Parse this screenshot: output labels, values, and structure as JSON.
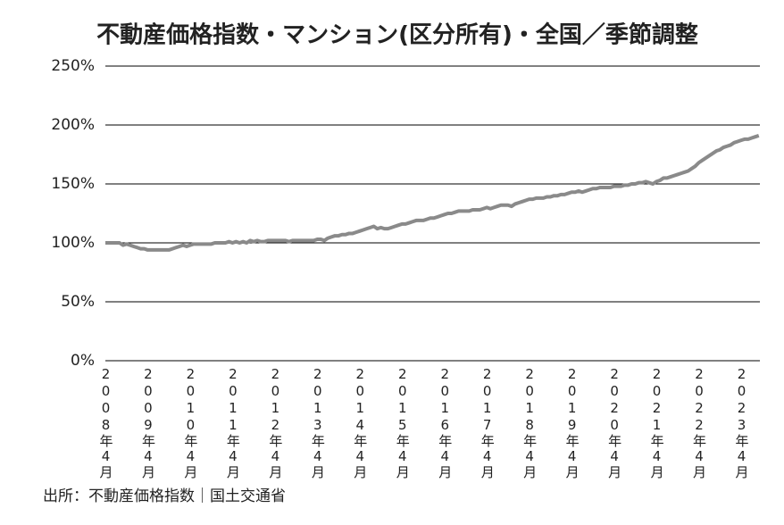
{
  "chart_data": {
    "type": "line",
    "title": "不動産価格指数・マンション(区分所有)・全国／季節調整",
    "source": "出所：不動産価格指数｜国土交通省",
    "categories": [
      "2008年4月",
      null,
      null,
      null,
      null,
      null,
      null,
      null,
      null,
      null,
      null,
      null,
      "2009年4月",
      null,
      null,
      null,
      null,
      null,
      null,
      null,
      null,
      null,
      null,
      null,
      "2010年4月",
      null,
      null,
      null,
      null,
      null,
      null,
      null,
      null,
      null,
      null,
      null,
      "2011年4月",
      null,
      null,
      null,
      null,
      null,
      null,
      null,
      null,
      null,
      null,
      null,
      "2012年4月",
      null,
      null,
      null,
      null,
      null,
      null,
      null,
      null,
      null,
      null,
      null,
      "2013年4月",
      null,
      null,
      null,
      null,
      null,
      null,
      null,
      null,
      null,
      null,
      null,
      "2014年4月",
      null,
      null,
      null,
      null,
      null,
      null,
      null,
      null,
      null,
      null,
      null,
      "2015年4月",
      null,
      null,
      null,
      null,
      null,
      null,
      null,
      null,
      null,
      null,
      null,
      "2016年4月",
      null,
      null,
      null,
      null,
      null,
      null,
      null,
      null,
      null,
      null,
      null,
      "2017年4月",
      null,
      null,
      null,
      null,
      null,
      null,
      null,
      null,
      null,
      null,
      null,
      "2018年4月",
      null,
      null,
      null,
      null,
      null,
      null,
      null,
      null,
      null,
      null,
      null,
      "2019年4月",
      null,
      null,
      null,
      null,
      null,
      null,
      null,
      null,
      null,
      null,
      null,
      "2020年4月",
      null,
      null,
      null,
      null,
      null,
      null,
      null,
      null,
      null,
      null,
      null,
      "2021年4月",
      null,
      null,
      null,
      null,
      null,
      null,
      null,
      null,
      null,
      null,
      null,
      "2022年4月",
      null,
      null,
      null,
      null,
      null,
      null,
      null,
      null,
      null,
      null,
      null,
      "2023年4月",
      null,
      null,
      null,
      null,
      null
    ],
    "values": [
      100,
      100,
      100,
      100,
      100,
      98,
      99,
      98,
      97,
      96,
      95,
      95,
      94,
      94,
      94,
      94,
      94,
      94,
      94,
      95,
      96,
      97,
      98,
      97,
      98,
      99,
      99,
      99,
      99,
      99,
      99,
      100,
      100,
      100,
      100,
      101,
      100,
      101,
      100,
      101,
      100,
      102,
      101,
      102,
      101,
      101,
      102,
      102,
      102,
      102,
      102,
      102,
      101,
      102,
      102,
      102,
      102,
      102,
      102,
      102,
      103,
      103,
      102,
      104,
      105,
      106,
      106,
      107,
      107,
      108,
      108,
      109,
      110,
      111,
      112,
      113,
      114,
      112,
      113,
      112,
      112,
      113,
      114,
      115,
      116,
      116,
      117,
      118,
      119,
      119,
      119,
      120,
      121,
      121,
      122,
      123,
      124,
      125,
      125,
      126,
      127,
      127,
      127,
      127,
      128,
      128,
      128,
      129,
      130,
      129,
      130,
      131,
      132,
      132,
      132,
      131,
      133,
      134,
      135,
      136,
      137,
      137,
      138,
      138,
      138,
      139,
      139,
      140,
      140,
      141,
      141,
      142,
      143,
      143,
      144,
      143,
      144,
      145,
      146,
      146,
      147,
      147,
      147,
      147,
      148,
      148,
      148,
      149,
      149,
      150,
      150,
      151,
      151,
      152,
      151,
      150,
      152,
      153,
      155,
      155,
      156,
      157,
      158,
      159,
      160,
      161,
      163,
      165,
      168,
      170,
      172,
      174,
      176,
      178,
      179,
      181,
      182,
      183,
      185,
      186,
      187,
      188,
      188,
      189,
      190,
      191
    ],
    "color": "#8a8a8a",
    "ylim": [
      0,
      250
    ],
    "yticks": [
      {
        "value": 0,
        "label": "0%"
      },
      {
        "value": 50,
        "label": "50%"
      },
      {
        "value": 100,
        "label": "100%"
      },
      {
        "value": 150,
        "label": "150%"
      },
      {
        "value": 200,
        "label": "200%"
      },
      {
        "value": 250,
        "label": "250%"
      }
    ],
    "grid": true
  }
}
